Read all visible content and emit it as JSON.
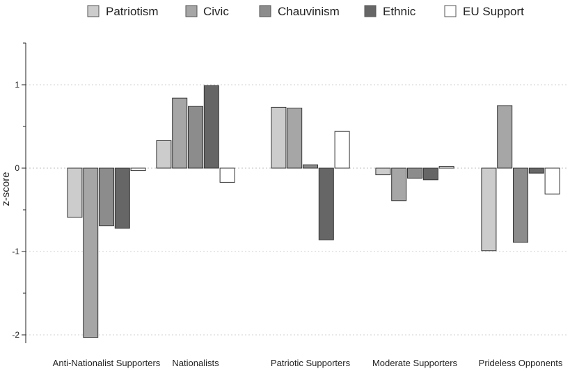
{
  "chart_data": {
    "type": "bar",
    "title": "",
    "xlabel": "",
    "ylabel": "z-score",
    "ylim": [
      -2.1,
      1.5
    ],
    "yticks": [
      -2,
      -1,
      0,
      1
    ],
    "grid": true,
    "legend_position": "top",
    "categories": [
      "Anti-Nationalist Supporters",
      "Nationalists",
      "Patriotic Supporters",
      "Moderate Supporters",
      "Prideless Opponents"
    ],
    "series": [
      {
        "name": "Patriotism",
        "color": "#cccccc",
        "values": [
          -0.59,
          0.33,
          0.73,
          -0.08,
          -0.99
        ]
      },
      {
        "name": "Civic",
        "color": "#a6a6a6",
        "values": [
          -2.03,
          0.84,
          0.72,
          -0.39,
          0.75
        ]
      },
      {
        "name": "Chauvinism",
        "color": "#8c8c8c",
        "values": [
          -0.69,
          0.74,
          0.04,
          -0.12,
          -0.89
        ]
      },
      {
        "name": "Ethnic",
        "color": "#666666",
        "values": [
          -0.72,
          0.99,
          -0.86,
          -0.14,
          -0.06
        ]
      },
      {
        "name": "EU Support",
        "color": "#ffffff",
        "values": [
          -0.03,
          -0.17,
          0.44,
          0.02,
          -0.31
        ]
      }
    ]
  }
}
